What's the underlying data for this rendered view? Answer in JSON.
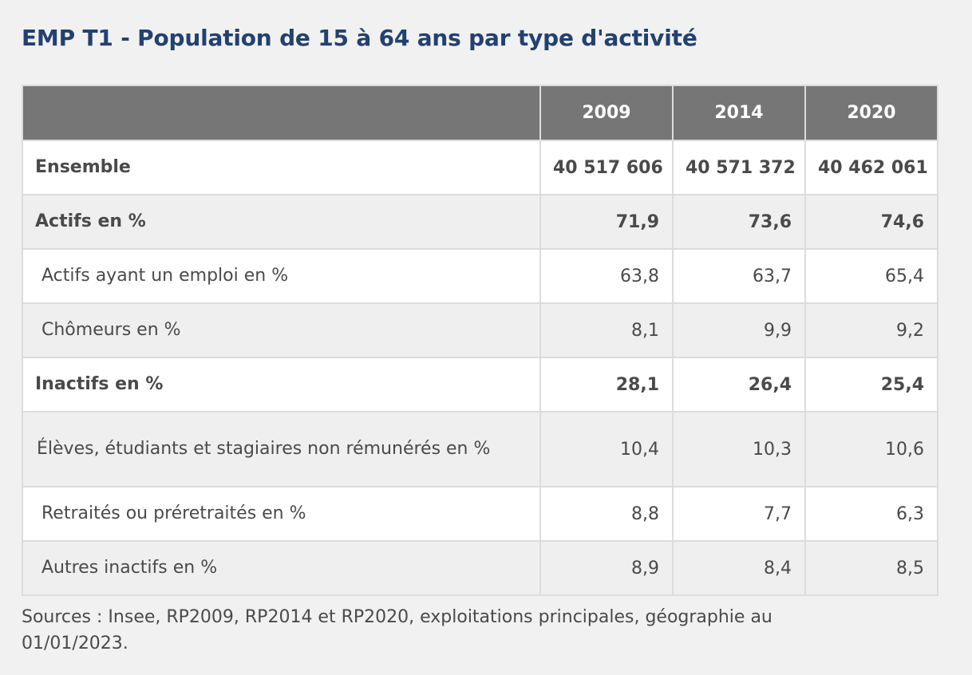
{
  "title": "EMP T1 - Population de 15 à 64 ans par type d'activité",
  "table": {
    "columns": [
      "",
      "2009",
      "2014",
      "2020"
    ],
    "rows": [
      {
        "label": "Ensemble",
        "values": [
          "40 517 606",
          "40 571 372",
          "40 462 061"
        ]
      },
      {
        "label": "Actifs en %",
        "values": [
          "71,9",
          "73,6",
          "74,6"
        ]
      },
      {
        "label": "Actifs ayant un emploi en %",
        "values": [
          "63,8",
          "63,7",
          "65,4"
        ]
      },
      {
        "label": "Chômeurs en %",
        "values": [
          "8,1",
          "9,9",
          "9,2"
        ]
      },
      {
        "label": "Inactifs en %",
        "values": [
          "28,1",
          "26,4",
          "25,4"
        ]
      },
      {
        "label": "Élèves, étudiants et stagiaires non rémunérés en %",
        "values": [
          "10,4",
          "10,3",
          "10,6"
        ]
      },
      {
        "label": "Retraités ou préretraités en %",
        "values": [
          "8,8",
          "7,7",
          "6,3"
        ]
      },
      {
        "label": "Autres inactifs en %",
        "values": [
          "8,9",
          "8,4",
          "8,5"
        ]
      }
    ]
  },
  "source": "Sources : Insee, RP2009, RP2014 et RP2020, exploitations principales, géographie au 01/01/2023."
}
